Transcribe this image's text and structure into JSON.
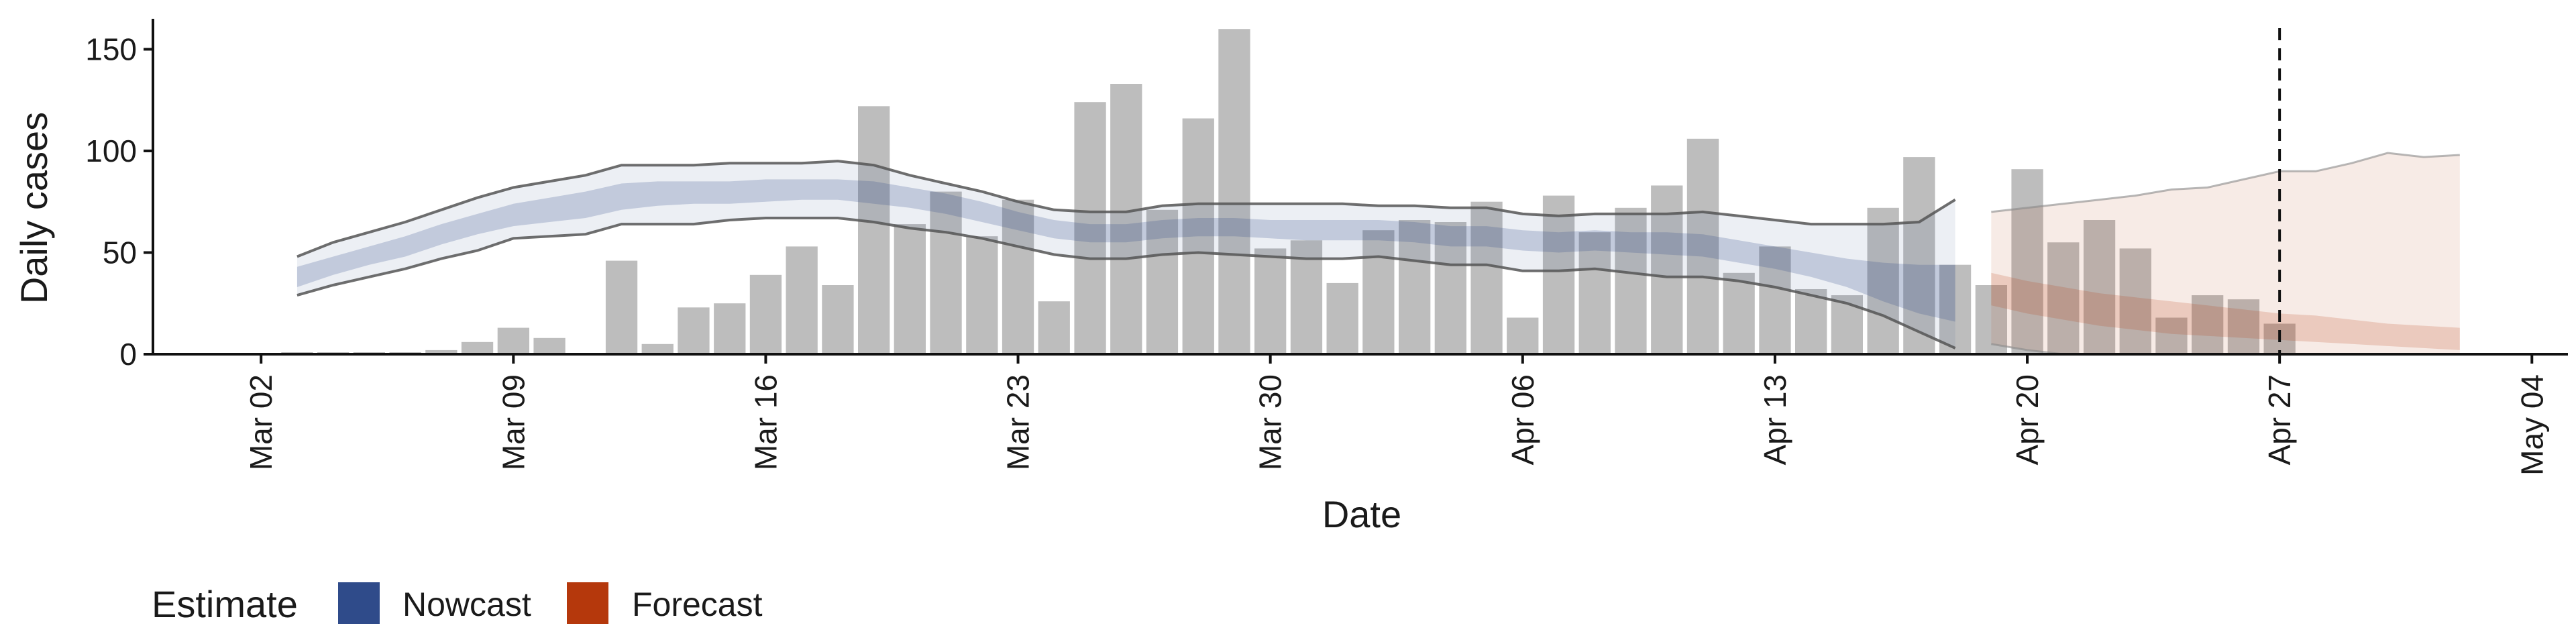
{
  "chart_data": {
    "type": "bar",
    "xlabel": "Date",
    "ylabel": "Daily cases",
    "ylim": [
      0,
      165
    ],
    "yticks": [
      0,
      50,
      100,
      150
    ],
    "xlim": [
      "2020-02-28",
      "2020-05-05"
    ],
    "xticks": [
      {
        "date": "2020-03-02",
        "label": "Mar 02"
      },
      {
        "date": "2020-03-09",
        "label": "Mar 09"
      },
      {
        "date": "2020-03-16",
        "label": "Mar 16"
      },
      {
        "date": "2020-03-23",
        "label": "Mar 23"
      },
      {
        "date": "2020-03-30",
        "label": "Mar 30"
      },
      {
        "date": "2020-04-06",
        "label": "Apr 06"
      },
      {
        "date": "2020-04-13",
        "label": "Apr 13"
      },
      {
        "date": "2020-04-20",
        "label": "Apr 20"
      },
      {
        "date": "2020-04-27",
        "label": "Apr 27"
      },
      {
        "date": "2020-05-04",
        "label": "May 04"
      }
    ],
    "grid": false,
    "legend_position": "bottom-left",
    "reference_line": {
      "date": "2020-04-27",
      "style": "dashed"
    },
    "bars": {
      "color": "#bdbdbd",
      "start_date": "2020-03-03",
      "values": [
        1,
        1,
        1,
        1,
        2,
        6,
        13,
        8,
        0,
        46,
        5,
        23,
        25,
        39,
        53,
        34,
        122,
        64,
        80,
        58,
        76,
        26,
        124,
        133,
        71,
        116,
        160,
        52,
        56,
        35,
        61,
        66,
        65,
        75,
        18,
        78,
        60,
        72,
        83,
        106,
        40,
        53,
        32,
        29,
        72,
        97,
        44,
        34,
        91,
        55,
        66,
        52,
        18,
        29,
        27,
        15
      ]
    },
    "nowcast": {
      "name": "Nowcast",
      "color": "#2f4b8a",
      "dates": [
        "2020-03-03",
        "2020-03-04",
        "2020-03-05",
        "2020-03-06",
        "2020-03-07",
        "2020-03-08",
        "2020-03-09",
        "2020-03-10",
        "2020-03-11",
        "2020-03-12",
        "2020-03-13",
        "2020-03-14",
        "2020-03-15",
        "2020-03-16",
        "2020-03-17",
        "2020-03-18",
        "2020-03-19",
        "2020-03-20",
        "2020-03-21",
        "2020-03-22",
        "2020-03-23",
        "2020-03-24",
        "2020-03-25",
        "2020-03-26",
        "2020-03-27",
        "2020-03-28",
        "2020-03-29",
        "2020-03-30",
        "2020-03-31",
        "2020-04-01",
        "2020-04-02",
        "2020-04-03",
        "2020-04-04",
        "2020-04-05",
        "2020-04-06",
        "2020-04-07",
        "2020-04-08",
        "2020-04-09",
        "2020-04-10",
        "2020-04-11",
        "2020-04-12",
        "2020-04-13",
        "2020-04-14",
        "2020-04-15",
        "2020-04-16",
        "2020-04-17",
        "2020-04-18"
      ],
      "lower90": [
        29,
        34,
        38,
        42,
        47,
        51,
        57,
        58,
        59,
        64,
        64,
        64,
        66,
        67,
        67,
        67,
        65,
        62,
        60,
        57,
        53,
        49,
        47,
        47,
        49,
        50,
        49,
        48,
        47,
        47,
        48,
        46,
        44,
        44,
        41,
        41,
        42,
        40,
        38,
        38,
        36,
        33,
        29,
        25,
        19,
        11,
        3
      ],
      "upper90": [
        48,
        55,
        60,
        65,
        71,
        77,
        82,
        85,
        88,
        93,
        93,
        93,
        94,
        94,
        94,
        95,
        93,
        88,
        84,
        80,
        75,
        71,
        70,
        70,
        73,
        74,
        74,
        74,
        74,
        74,
        73,
        73,
        72,
        72,
        69,
        68,
        69,
        69,
        69,
        70,
        68,
        66,
        64,
        64,
        64,
        65,
        76
      ],
      "lower50": [
        33,
        39,
        44,
        48,
        54,
        59,
        63,
        65,
        67,
        71,
        73,
        74,
        74,
        75,
        76,
        76,
        74,
        72,
        69,
        65,
        61,
        57,
        55,
        55,
        57,
        58,
        58,
        57,
        56,
        56,
        56,
        55,
        53,
        53,
        51,
        50,
        51,
        50,
        49,
        48,
        45,
        42,
        38,
        33,
        26,
        20,
        16
      ],
      "upper50": [
        43,
        48,
        53,
        58,
        64,
        69,
        74,
        77,
        80,
        84,
        85,
        85,
        85,
        86,
        86,
        86,
        85,
        82,
        79,
        75,
        70,
        66,
        64,
        64,
        66,
        67,
        67,
        66,
        66,
        66,
        66,
        65,
        63,
        63,
        61,
        60,
        61,
        60,
        60,
        59,
        56,
        53,
        50,
        47,
        45,
        44,
        44
      ]
    },
    "forecast": {
      "name": "Forecast",
      "color": "#b5380c",
      "dates": [
        "2020-04-19",
        "2020-04-20",
        "2020-04-21",
        "2020-04-22",
        "2020-04-23",
        "2020-04-24",
        "2020-04-25",
        "2020-04-26",
        "2020-04-27",
        "2020-04-28",
        "2020-04-29",
        "2020-04-30",
        "2020-05-01",
        "2020-05-02"
      ],
      "lower90": [
        5,
        2,
        0,
        0,
        0,
        0,
        0,
        0,
        0,
        0,
        0,
        0,
        0,
        0
      ],
      "upper90": [
        70,
        72,
        74,
        76,
        78,
        81,
        82,
        86,
        90,
        90,
        94,
        99,
        97,
        98
      ],
      "lower50": [
        24,
        20,
        17,
        14,
        12,
        10,
        9,
        8,
        7,
        6,
        5,
        4,
        3,
        2
      ],
      "upper50": [
        40,
        36,
        33,
        30,
        28,
        26,
        24,
        22,
        20,
        19,
        17,
        15,
        14,
        13
      ]
    }
  },
  "legend": {
    "title": "Estimate",
    "items": [
      {
        "label": "Nowcast",
        "color": "#2f4b8a"
      },
      {
        "label": "Forecast",
        "color": "#b5380c"
      }
    ]
  }
}
